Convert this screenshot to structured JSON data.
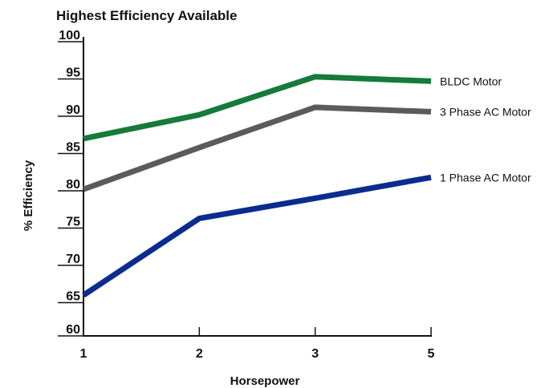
{
  "chart_data": {
    "type": "line",
    "title": "Highest Efficiency Available",
    "xlabel": "Horsepower",
    "ylabel": "% Efficiency",
    "categories": [
      "1",
      "2",
      "3",
      "5"
    ],
    "ylim": [
      60,
      100
    ],
    "yticks": [
      60,
      65,
      70,
      75,
      80,
      85,
      90,
      95,
      100
    ],
    "grid": false,
    "legend_placement": "right",
    "series": [
      {
        "name": "BLDC Motor",
        "values": [
          87,
          90.2,
          95.3,
          94.7
        ],
        "color": "#157a3a"
      },
      {
        "name": "3 Phase AC Motor",
        "values": [
          80.2,
          85.8,
          91.2,
          90.6
        ],
        "color": "#5b5b5b"
      },
      {
        "name": "1 Phase AC Motor",
        "values": [
          66,
          76.3,
          79,
          81.8
        ],
        "color": "#0b2c8e"
      }
    ]
  }
}
